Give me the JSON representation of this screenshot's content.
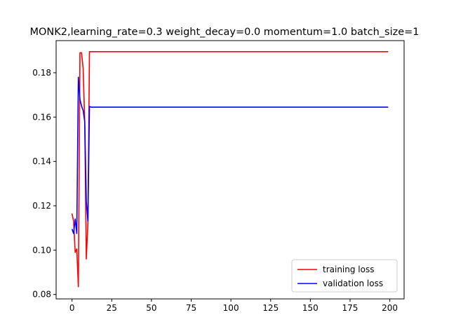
{
  "chart_data": {
    "type": "line",
    "title": "MONK2,learning_rate=0.3  weight_decay=0.0  momentum=1.0  batch_size=1",
    "xlabel": "",
    "ylabel": "",
    "xlim": [
      -10,
      209
    ],
    "ylim": [
      0.078,
      0.1945
    ],
    "x_ticks": [
      0,
      25,
      50,
      75,
      100,
      125,
      150,
      175,
      200
    ],
    "y_ticks": [
      0.08,
      0.1,
      0.12,
      0.14,
      0.16,
      0.18
    ],
    "y_tick_labels": [
      "0.08",
      "0.10",
      "0.12",
      "0.14",
      "0.16",
      "0.18"
    ],
    "grid": false,
    "legend_position": "lower-right",
    "series": [
      {
        "name": "training loss",
        "color": "#ff0000",
        "points": [
          [
            0,
            0.1165
          ],
          [
            1,
            0.113
          ],
          [
            2,
            0.099
          ],
          [
            3,
            0.1005
          ],
          [
            4,
            0.0835
          ],
          [
            5,
            0.189
          ],
          [
            6,
            0.189
          ],
          [
            7,
            0.182
          ],
          [
            8,
            0.158
          ],
          [
            9,
            0.096
          ],
          [
            10,
            0.112
          ],
          [
            11,
            0.1895
          ],
          [
            199,
            0.1895
          ]
        ]
      },
      {
        "name": "validation loss",
        "color": "#0000ff",
        "points": [
          [
            0,
            0.1095
          ],
          [
            1,
            0.1075
          ],
          [
            2,
            0.114
          ],
          [
            3,
            0.1075
          ],
          [
            4,
            0.178
          ],
          [
            5,
            0.168
          ],
          [
            6,
            0.165
          ],
          [
            7,
            0.163
          ],
          [
            8,
            0.158
          ],
          [
            9,
            0.122
          ],
          [
            10,
            0.113
          ],
          [
            11,
            0.1648
          ],
          [
            12,
            0.1645
          ],
          [
            199,
            0.1645
          ]
        ]
      }
    ]
  }
}
